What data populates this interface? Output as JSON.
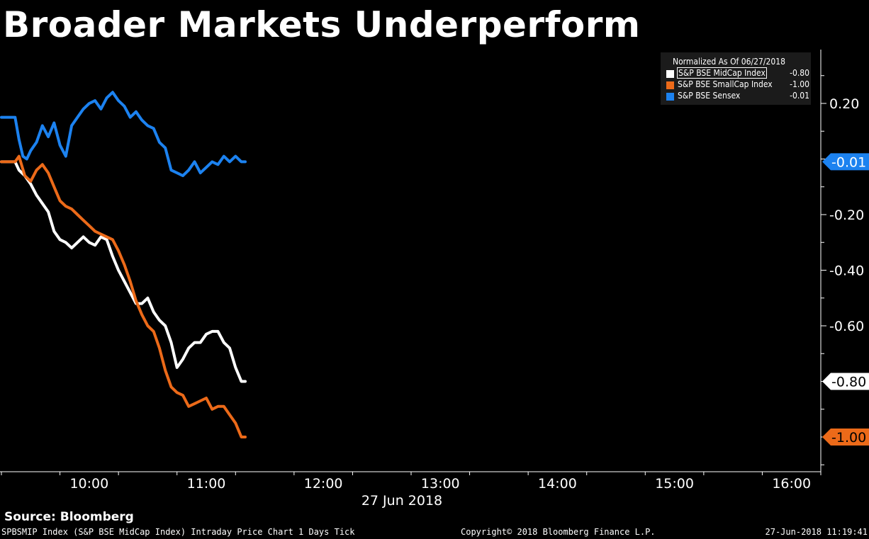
{
  "title": "Broader Markets Underperform",
  "legend": {
    "header": "Normalized As Of 06/27/2018",
    "entries": [
      {
        "name": "S&P BSE MidCap Index",
        "value": "-0.80",
        "color": "#ffffff"
      },
      {
        "name": "S&P BSE SmallCap Index",
        "value": "-1.00",
        "color": "#ec6a19"
      },
      {
        "name": "S&P BSE Sensex",
        "value": "-0.01",
        "color": "#1c82f0"
      }
    ]
  },
  "footer": {
    "source": "Source: Bloomberg",
    "description": "SPBSMIP Index (S&P BSE MidCap Index) Intraday Price Chart 1 Days  Tick",
    "copyright": "Copyright© 2018 Bloomberg Finance L.P.",
    "timestamp": "27-Jun-2018 11:19:41"
  },
  "chart_data": {
    "type": "line",
    "xlabel": "27 Jun 2018",
    "ylabel": "",
    "xlim": [
      "09:15",
      "16:15"
    ],
    "ylim": [
      -1.2,
      0.3
    ],
    "x_ticks": [
      "10:00",
      "11:00",
      "12:00",
      "13:00",
      "14:00",
      "15:00",
      "16:00"
    ],
    "y_ticks": [
      "0.20",
      "-0.20",
      "-0.40",
      "-0.60"
    ],
    "last_value_labels": [
      {
        "text": "-0.01",
        "value": -0.01,
        "color": "#1c82f0",
        "text_color": "#ffffff"
      },
      {
        "text": "-0.80",
        "value": -0.8,
        "color": "#ffffff",
        "text_color": "#000000"
      },
      {
        "text": "-1.00",
        "value": -1.0,
        "color": "#ec6a19",
        "text_color": "#000000"
      }
    ],
    "grid": false,
    "legend_position": "top-right",
    "series": [
      {
        "name": "S&P BSE Sensex",
        "color": "#1c82f0",
        "x": [
          "09:15",
          "09:22",
          "09:24",
          "09:26",
          "09:28",
          "09:30",
          "09:33",
          "09:36",
          "09:39",
          "09:42",
          "09:45",
          "09:48",
          "09:51",
          "09:54",
          "09:57",
          "10:00",
          "10:03",
          "10:06",
          "10:09",
          "10:12",
          "10:15",
          "10:18",
          "10:21",
          "10:24",
          "10:27",
          "10:30",
          "10:33",
          "10:36",
          "10:39",
          "10:42",
          "10:45",
          "10:48",
          "10:51",
          "10:54",
          "10:57",
          "11:00",
          "11:03",
          "11:06",
          "11:09",
          "11:12",
          "11:15",
          "11:18",
          "11:20"
        ],
        "y": [
          0.15,
          0.15,
          0.07,
          0.01,
          0.0,
          0.03,
          0.06,
          0.12,
          0.08,
          0.13,
          0.05,
          0.01,
          0.12,
          0.15,
          0.18,
          0.2,
          0.21,
          0.18,
          0.22,
          0.24,
          0.21,
          0.19,
          0.15,
          0.17,
          0.14,
          0.12,
          0.11,
          0.06,
          0.04,
          -0.04,
          -0.05,
          -0.06,
          -0.04,
          -0.01,
          -0.05,
          -0.03,
          -0.01,
          -0.02,
          0.01,
          -0.01,
          0.01,
          -0.01,
          -0.01
        ]
      },
      {
        "name": "S&P BSE MidCap Index",
        "color": "#ffffff",
        "x": [
          "09:15",
          "09:22",
          "09:24",
          "09:27",
          "09:30",
          "09:33",
          "09:36",
          "09:39",
          "09:42",
          "09:45",
          "09:48",
          "09:51",
          "09:54",
          "09:57",
          "10:00",
          "10:03",
          "10:06",
          "10:09",
          "10:12",
          "10:15",
          "10:18",
          "10:21",
          "10:24",
          "10:27",
          "10:30",
          "10:33",
          "10:36",
          "10:39",
          "10:42",
          "10:45",
          "10:48",
          "10:51",
          "10:54",
          "10:57",
          "11:00",
          "11:03",
          "11:06",
          "11:09",
          "11:12",
          "11:15",
          "11:18",
          "11:20"
        ],
        "y": [
          -0.01,
          -0.01,
          -0.04,
          -0.06,
          -0.09,
          -0.13,
          -0.16,
          -0.19,
          -0.26,
          -0.29,
          -0.3,
          -0.32,
          -0.3,
          -0.28,
          -0.3,
          -0.31,
          -0.28,
          -0.29,
          -0.35,
          -0.4,
          -0.44,
          -0.48,
          -0.52,
          -0.52,
          -0.5,
          -0.55,
          -0.58,
          -0.6,
          -0.66,
          -0.75,
          -0.72,
          -0.68,
          -0.66,
          -0.66,
          -0.63,
          -0.62,
          -0.62,
          -0.66,
          -0.68,
          -0.75,
          -0.8,
          -0.8
        ]
      },
      {
        "name": "S&P BSE SmallCap Index",
        "color": "#ec6a19",
        "x": [
          "09:15",
          "09:22",
          "09:24",
          "09:27",
          "09:30",
          "09:33",
          "09:36",
          "09:39",
          "09:42",
          "09:45",
          "09:48",
          "09:51",
          "09:54",
          "09:57",
          "10:00",
          "10:03",
          "10:06",
          "10:09",
          "10:12",
          "10:15",
          "10:18",
          "10:21",
          "10:24",
          "10:27",
          "10:30",
          "10:33",
          "10:36",
          "10:39",
          "10:42",
          "10:45",
          "10:48",
          "10:51",
          "10:54",
          "10:57",
          "11:00",
          "11:03",
          "11:06",
          "11:09",
          "11:12",
          "11:15",
          "11:18",
          "11:20"
        ],
        "y": [
          -0.01,
          -0.01,
          0.01,
          -0.06,
          -0.08,
          -0.04,
          -0.02,
          -0.05,
          -0.1,
          -0.15,
          -0.17,
          -0.18,
          -0.2,
          -0.22,
          -0.24,
          -0.26,
          -0.27,
          -0.28,
          -0.29,
          -0.33,
          -0.38,
          -0.44,
          -0.51,
          -0.56,
          -0.6,
          -0.62,
          -0.68,
          -0.76,
          -0.82,
          -0.84,
          -0.85,
          -0.89,
          -0.88,
          -0.87,
          -0.86,
          -0.9,
          -0.89,
          -0.89,
          -0.92,
          -0.95,
          -1.0,
          -1.0
        ]
      }
    ]
  }
}
